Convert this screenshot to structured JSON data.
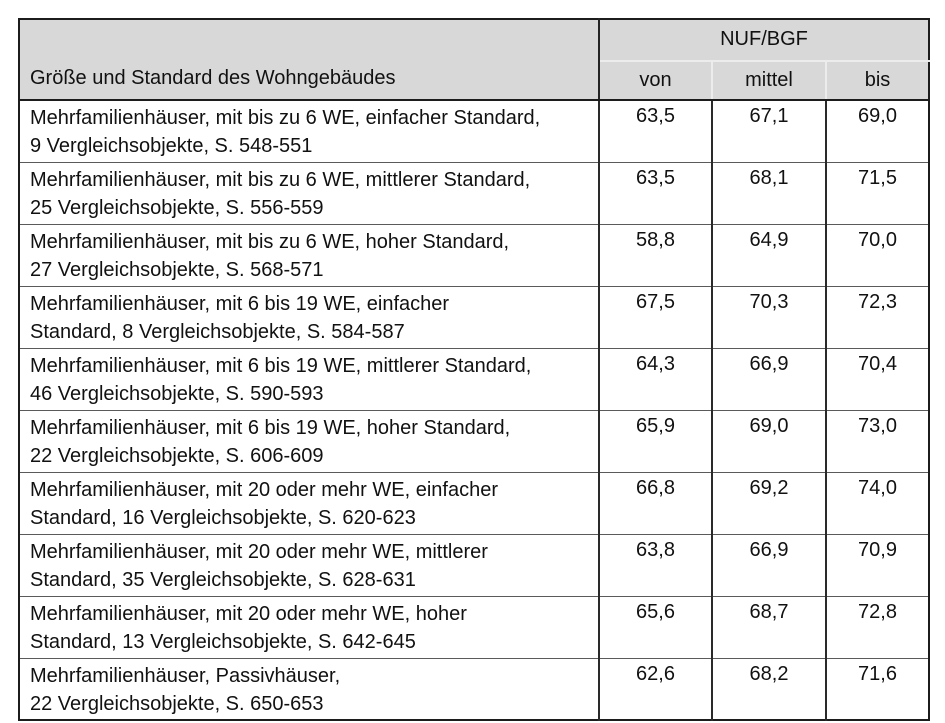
{
  "table": {
    "title_column_header": "Größe und Standard des Wohngebäudes",
    "group_header": "NUF/BGF",
    "sub_headers": [
      "von",
      "mittel",
      "bis"
    ],
    "rows": [
      {
        "label_lines": [
          "Mehrfamilienhäuser, mit bis zu 6 WE, einfacher Standard,",
          "9 Vergleichsobjekte, S. 548-551"
        ],
        "von": "63,5",
        "mittel": "67,1",
        "bis": "69,0"
      },
      {
        "label_lines": [
          "Mehrfamilienhäuser, mit bis zu 6 WE, mittlerer Standard,",
          "25 Vergleichsobjekte, S. 556-559"
        ],
        "von": "63,5",
        "mittel": "68,1",
        "bis": "71,5"
      },
      {
        "label_lines": [
          "Mehrfamilienhäuser, mit bis zu 6 WE, hoher Standard,",
          "27 Vergleichsobjekte, S. 568-571"
        ],
        "von": "58,8",
        "mittel": "64,9",
        "bis": "70,0"
      },
      {
        "label_lines": [
          "Mehrfamilienhäuser, mit 6 bis 19 WE, einfacher",
          "Standard, 8 Vergleichsobjekte, S. 584-587"
        ],
        "von": "67,5",
        "mittel": "70,3",
        "bis": "72,3"
      },
      {
        "label_lines": [
          "Mehrfamilienhäuser, mit 6 bis 19 WE, mittlerer Standard,",
          "46 Vergleichsobjekte, S. 590-593"
        ],
        "von": "64,3",
        "mittel": "66,9",
        "bis": "70,4"
      },
      {
        "label_lines": [
          "Mehrfamilienhäuser, mit 6 bis 19 WE, hoher Standard,",
          "22 Vergleichsobjekte, S. 606-609"
        ],
        "von": "65,9",
        "mittel": "69,0",
        "bis": "73,0"
      },
      {
        "label_lines": [
          "Mehrfamilienhäuser, mit 20 oder mehr WE, einfacher",
          "Standard, 16 Vergleichsobjekte, S. 620-623"
        ],
        "von": "66,8",
        "mittel": "69,2",
        "bis": "74,0"
      },
      {
        "label_lines": [
          "Mehrfamilienhäuser, mit 20 oder mehr WE, mittlerer",
          "Standard, 35 Vergleichsobjekte, S. 628-631"
        ],
        "von": "63,8",
        "mittel": "66,9",
        "bis": "70,9"
      },
      {
        "label_lines": [
          "Mehrfamilienhäuser, mit 20 oder mehr WE, hoher",
          "Standard, 13 Vergleichsobjekte, S. 642-645"
        ],
        "von": "65,6",
        "mittel": "68,7",
        "bis": "72,8"
      },
      {
        "label_lines": [
          "Mehrfamilienhäuser, Passivhäuser,",
          "22 Vergleichsobjekte, S. 650-653"
        ],
        "von": "62,6",
        "mittel": "68,2",
        "bis": "71,6"
      }
    ],
    "colors": {
      "header_background": "#d8d8d8",
      "outer_border": "#1c1c1c",
      "column_divider": "#2a2a2a",
      "row_divider": "#5a5a5a",
      "header_inner_divider": "#ececec",
      "text": "#111111",
      "page_background": "#ffffff"
    }
  }
}
